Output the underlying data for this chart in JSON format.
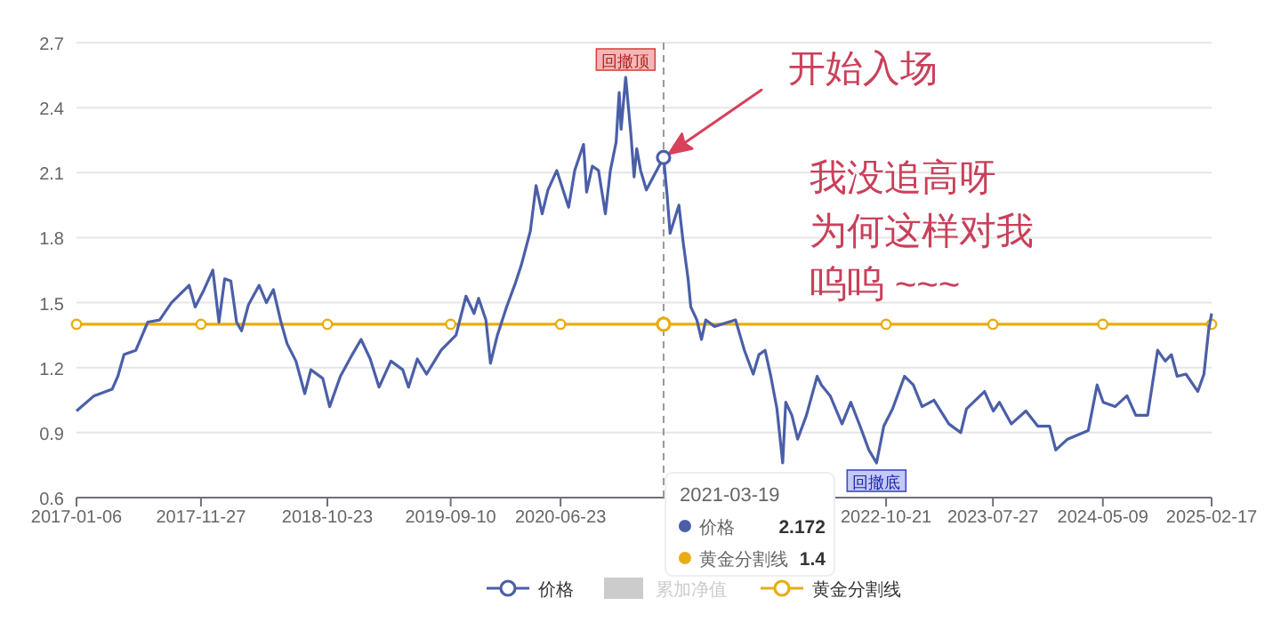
{
  "chart_data": {
    "type": "line",
    "xlim": [
      "2017-01-06",
      "2025-02-17"
    ],
    "ylim": [
      0.6,
      2.7
    ],
    "yticks": [
      0.6,
      0.9,
      1.2,
      1.5,
      1.8,
      2.1,
      2.4,
      2.7
    ],
    "xticks": [
      {
        "value": "2017-01-06",
        "label": "2017-01-06"
      },
      {
        "value": "2017-11-27",
        "label": "2017-11-27"
      },
      {
        "value": "2018-10-23",
        "label": "2018-10-23"
      },
      {
        "value": "2019-09-10",
        "label": "2019-09-10"
      },
      {
        "value": "2020-06-23",
        "label": "2020-06-23"
      },
      {
        "value": "2021-04-15",
        "label": null
      },
      {
        "value": "2022-01-15",
        "label": null
      },
      {
        "value": "2022-10-21",
        "label": "2022-10-21"
      },
      {
        "value": "2023-07-27",
        "label": "2023-07-27"
      },
      {
        "value": "2024-05-09",
        "label": "2024-05-09"
      },
      {
        "value": "2025-02-17",
        "label": "2025-02-17"
      }
    ],
    "grid": "y",
    "legend": "bottom",
    "series": [
      {
        "name": "价格",
        "color": "#4b5fa8",
        "marker": "none",
        "x": [
          "2017-01-06",
          "2017-02-21",
          "2017-04-09",
          "2017-04-24",
          "2017-05-10",
          "2017-06-10",
          "2017-07-11",
          "2017-08-11",
          "2017-09-11",
          "2017-10-27",
          "2017-11-12",
          "2017-12-05",
          "2017-12-28",
          "2018-01-13",
          "2018-01-28",
          "2018-02-13",
          "2018-02-28",
          "2018-03-13",
          "2018-03-31",
          "2018-04-28",
          "2018-05-17",
          "2018-06-04",
          "2018-06-24",
          "2018-07-10",
          "2018-08-02",
          "2018-08-25",
          "2018-09-10",
          "2018-10-11",
          "2018-10-29",
          "2018-11-26",
          "2018-12-27",
          "2019-01-19",
          "2019-02-12",
          "2019-03-07",
          "2019-04-07",
          "2019-05-08",
          "2019-05-23",
          "2019-06-15",
          "2019-07-09",
          "2019-08-16",
          "2019-09-24",
          "2019-10-20",
          "2019-11-10",
          "2019-11-22",
          "2019-12-11",
          "2019-12-23",
          "2020-01-10",
          "2020-02-03",
          "2020-02-26",
          "2020-03-12",
          "2020-04-05",
          "2020-04-20",
          "2020-05-06",
          "2020-05-21",
          "2020-06-13",
          "2020-07-14",
          "2020-07-30",
          "2020-08-22",
          "2020-08-30",
          "2020-09-14",
          "2020-09-30",
          "2020-10-18",
          "2020-10-31",
          "2020-11-15",
          "2020-11-23",
          "2020-11-28",
          "2020-12-10",
          "2020-12-24",
          "2021-01-01",
          "2021-01-08",
          "2021-01-18",
          "2021-02-02",
          "2021-03-19",
          "2021-03-28",
          "2021-04-05",
          "2021-04-28",
          "2021-05-09",
          "2021-05-22",
          "2021-05-29",
          "2021-06-14",
          "2021-06-26",
          "2021-07-07",
          "2021-07-30",
          "2021-09-23",
          "2021-10-16",
          "2021-11-08",
          "2021-11-23",
          "2021-12-09",
          "2021-12-24",
          "2022-01-09",
          "2022-01-24",
          "2022-02-01",
          "2022-02-17",
          "2022-03-04",
          "2022-03-27",
          "2022-04-24",
          "2022-05-05",
          "2022-05-28",
          "2022-06-28",
          "2022-07-21",
          "2022-08-14",
          "2022-09-06",
          "2022-09-26",
          "2022-10-15",
          "2022-11-07",
          "2022-12-08",
          "2022-12-31",
          "2023-01-23",
          "2023-02-23",
          "2023-04-03",
          "2023-05-04",
          "2023-05-19",
          "2023-07-05",
          "2023-07-28",
          "2023-08-13",
          "2023-09-13",
          "2023-10-21",
          "2023-11-21",
          "2023-12-22",
          "2024-01-07",
          "2024-02-07",
          "2024-04-01",
          "2024-04-24",
          "2024-05-10",
          "2024-06-10",
          "2024-07-11",
          "2024-08-03",
          "2024-09-03",
          "2024-09-29",
          "2024-10-19",
          "2024-11-04",
          "2024-11-19",
          "2024-12-12",
          "2025-01-12",
          "2025-01-28",
          "2025-02-09",
          "2025-02-17"
        ],
        "values": [
          1.0,
          1.07,
          1.1,
          1.16,
          1.26,
          1.28,
          1.41,
          1.42,
          1.5,
          1.58,
          1.48,
          1.56,
          1.65,
          1.41,
          1.61,
          1.6,
          1.41,
          1.37,
          1.49,
          1.58,
          1.5,
          1.56,
          1.41,
          1.31,
          1.23,
          1.08,
          1.19,
          1.15,
          1.02,
          1.16,
          1.26,
          1.33,
          1.24,
          1.11,
          1.23,
          1.19,
          1.11,
          1.24,
          1.17,
          1.28,
          1.35,
          1.53,
          1.45,
          1.52,
          1.42,
          1.22,
          1.35,
          1.48,
          1.59,
          1.67,
          1.83,
          2.04,
          1.91,
          2.02,
          2.11,
          1.94,
          2.11,
          2.23,
          2.01,
          2.13,
          2.11,
          1.91,
          2.11,
          2.24,
          2.47,
          2.3,
          2.54,
          2.27,
          2.08,
          2.21,
          2.11,
          2.02,
          2.17,
          2.0,
          1.82,
          1.95,
          1.78,
          1.61,
          1.48,
          1.42,
          1.33,
          1.42,
          1.39,
          1.42,
          1.28,
          1.17,
          1.26,
          1.28,
          1.16,
          1.01,
          0.76,
          1.04,
          0.98,
          0.87,
          0.98,
          1.16,
          1.12,
          1.07,
          0.94,
          1.04,
          0.93,
          0.82,
          0.76,
          0.93,
          1.01,
          1.16,
          1.12,
          1.02,
          1.05,
          0.94,
          0.9,
          1.01,
          1.09,
          1.0,
          1.04,
          0.94,
          1.0,
          0.93,
          0.93,
          0.82,
          0.87,
          0.91,
          1.12,
          1.04,
          1.02,
          1.07,
          0.98,
          0.98,
          1.28,
          1.23,
          1.26,
          1.16,
          1.17,
          1.09,
          1.17,
          1.37,
          1.45
        ]
      },
      {
        "name": "累加净值",
        "type": "area",
        "color": "#cccccc"
      },
      {
        "name": "黄金分割线",
        "color": "#e8ad12",
        "marker": "circle",
        "x": [
          "2017-01-06",
          "2017-11-27",
          "2018-10-23",
          "2019-09-10",
          "2020-06-23",
          "2021-03-19",
          "2022-10-21",
          "2023-07-27",
          "2024-05-09",
          "2025-02-17"
        ],
        "values": [
          1.4,
          1.4,
          1.4,
          1.4,
          1.4,
          1.4,
          1.4,
          1.4,
          1.4,
          1.4
        ]
      }
    ],
    "ref_lines": [
      {
        "axis": "x",
        "value": "2021-03-19",
        "color": "#999999",
        "line_style": "dashed"
      }
    ],
    "annotations": [
      {
        "text": "回撤顶",
        "x": "2020-12-10",
        "y": 2.54
      },
      {
        "text": "回撤底",
        "x": "2022-09-26",
        "y": 0.76
      },
      "开始入场",
      "我没追高呀",
      "为何这样对我",
      "呜呜 ~~~",
      "2021-03-19",
      "价格",
      "2.172",
      "黄金分割线",
      "1.4"
    ]
  }
}
